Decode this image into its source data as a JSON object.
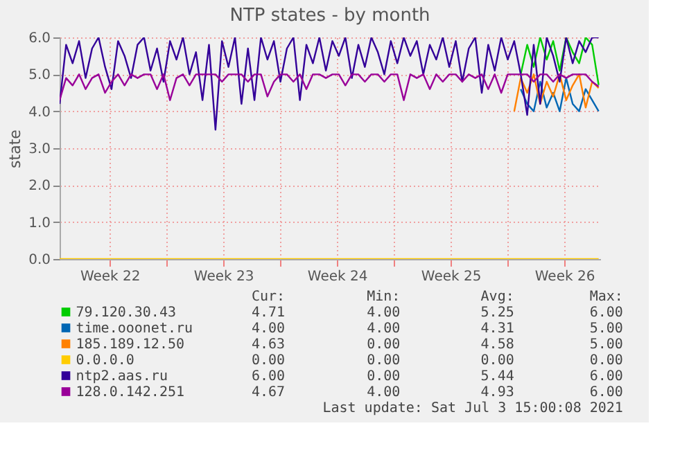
{
  "chart_data": {
    "type": "line",
    "title": "NTP states - by month",
    "ylabel": "state",
    "x": [
      "2021-05-31T10:00",
      "2021-05-31T19:36",
      "2021-06-01T05:12",
      "2021-06-01T14:48",
      "2021-06-02T00:24",
      "2021-06-02T10:00",
      "2021-06-02T19:36",
      "2021-06-03T05:12",
      "2021-06-03T14:48",
      "2021-06-04T00:24",
      "2021-06-04T10:00",
      "2021-06-04T19:36",
      "2021-06-05T05:12",
      "2021-06-05T14:48",
      "2021-06-06T00:24",
      "2021-06-06T10:00",
      "2021-06-06T19:36",
      "2021-06-07T05:12",
      "2021-06-07T14:48",
      "2021-06-08T00:24",
      "2021-06-08T10:00",
      "2021-06-08T19:36",
      "2021-06-09T05:12",
      "2021-06-09T14:48",
      "2021-06-10T00:24",
      "2021-06-10T10:00",
      "2021-06-10T19:36",
      "2021-06-11T05:12",
      "2021-06-11T14:48",
      "2021-06-12T00:24",
      "2021-06-12T10:00",
      "2021-06-12T19:36",
      "2021-06-13T05:12",
      "2021-06-13T14:48",
      "2021-06-14T00:24",
      "2021-06-14T10:00",
      "2021-06-14T19:36",
      "2021-06-15T05:12",
      "2021-06-15T14:48",
      "2021-06-16T00:24",
      "2021-06-16T10:00",
      "2021-06-16T19:36",
      "2021-06-17T05:12",
      "2021-06-17T14:48",
      "2021-06-18T00:24",
      "2021-06-18T10:00",
      "2021-06-18T19:36",
      "2021-06-19T05:12",
      "2021-06-19T14:48",
      "2021-06-20T00:24",
      "2021-06-20T10:00",
      "2021-06-20T19:36",
      "2021-06-21T05:12",
      "2021-06-21T14:48",
      "2021-06-22T00:24",
      "2021-06-22T10:00",
      "2021-06-22T19:36",
      "2021-06-23T05:12",
      "2021-06-23T14:48",
      "2021-06-24T00:24",
      "2021-06-24T10:00",
      "2021-06-24T19:36",
      "2021-06-25T05:12",
      "2021-06-25T14:48",
      "2021-06-26T00:24",
      "2021-06-26T10:00",
      "2021-06-26T19:36",
      "2021-06-27T05:12",
      "2021-06-27T14:48",
      "2021-06-28T00:24",
      "2021-06-28T10:00",
      "2021-06-28T19:36",
      "2021-06-29T05:12",
      "2021-06-29T14:48",
      "2021-06-30T00:24",
      "2021-06-30T10:00",
      "2021-06-30T19:36",
      "2021-07-01T05:12",
      "2021-07-01T14:48",
      "2021-07-02T00:24",
      "2021-07-02T10:00",
      "2021-07-02T19:36",
      "2021-07-03T05:12",
      "2021-07-03T14:48"
    ],
    "series": [
      {
        "name": "79.120.30.43",
        "color": "#00cc00",
        "x": [
          "2021-06-28T19:36",
          "2021-06-29T05:12",
          "2021-06-29T14:48",
          "2021-06-30T00:24",
          "2021-06-30T10:00",
          "2021-06-30T19:36",
          "2021-07-01T05:12",
          "2021-07-01T14:48",
          "2021-07-02T00:24",
          "2021-07-02T10:00",
          "2021-07-02T19:36",
          "2021-07-03T05:12",
          "2021-07-03T14:48"
        ],
        "values": [
          5.0,
          5.8,
          5.2,
          6.0,
          5.4,
          5.9,
          5.1,
          6.0,
          5.6,
          5.3,
          6.0,
          5.8,
          4.71
        ]
      },
      {
        "name": "time.ooonet.ru",
        "color": "#0066b3",
        "x": [
          "2021-06-28T19:36",
          "2021-06-29T05:12",
          "2021-06-29T14:48",
          "2021-06-30T00:24",
          "2021-06-30T10:00",
          "2021-06-30T19:36",
          "2021-07-01T05:12",
          "2021-07-01T14:48",
          "2021-07-02T00:24",
          "2021-07-02T10:00",
          "2021-07-02T19:36",
          "2021-07-03T05:12",
          "2021-07-03T14:48"
        ],
        "values": [
          4.6,
          4.2,
          4.0,
          4.8,
          4.1,
          4.5,
          4.0,
          4.9,
          4.2,
          4.0,
          4.6,
          4.3,
          4.0
        ]
      },
      {
        "name": "185.189.12.50",
        "color": "#ff8000",
        "x": [
          "2021-06-28T10:00",
          "2021-06-28T19:36",
          "2021-06-29T05:12",
          "2021-06-29T14:48",
          "2021-06-30T00:24",
          "2021-06-30T10:00",
          "2021-06-30T19:36",
          "2021-07-01T05:12",
          "2021-07-01T14:48",
          "2021-07-02T00:24",
          "2021-07-02T10:00",
          "2021-07-02T19:36",
          "2021-07-03T05:12",
          "2021-07-03T14:48"
        ],
        "values": [
          4.0,
          4.9,
          4.5,
          5.0,
          4.2,
          4.8,
          4.4,
          5.0,
          4.3,
          4.7,
          5.0,
          4.1,
          4.8,
          4.63
        ]
      },
      {
        "name": "0.0.0.0",
        "color": "#ffcc00",
        "values": [
          0,
          0,
          0,
          0,
          0,
          0,
          0,
          0,
          0,
          0,
          0,
          0,
          0,
          0,
          0,
          0,
          0,
          0,
          0,
          0,
          0,
          0,
          0,
          0,
          0,
          0,
          0,
          0,
          0,
          0,
          0,
          0,
          0,
          0,
          0,
          0,
          0,
          0,
          0,
          0,
          0,
          0,
          0,
          0,
          0,
          0,
          0,
          0,
          0,
          0,
          0,
          0,
          0,
          0,
          0,
          0,
          0,
          0,
          0,
          0,
          0,
          0,
          0,
          0,
          0,
          0,
          0,
          0,
          0,
          0,
          0,
          0,
          0,
          0,
          0,
          0,
          0,
          0,
          0,
          0,
          0,
          0,
          0,
          0
        ]
      },
      {
        "name": "ntp2.aas.ru",
        "color": "#330099",
        "values": [
          4.2,
          5.8,
          5.3,
          5.9,
          4.9,
          5.7,
          6.0,
          5.2,
          4.6,
          5.9,
          5.5,
          4.9,
          5.8,
          6.0,
          5.1,
          5.7,
          4.8,
          5.9,
          5.4,
          6.0,
          5.0,
          5.6,
          4.3,
          5.8,
          3.5,
          5.9,
          5.2,
          6.0,
          4.2,
          5.7,
          4.3,
          6.0,
          5.4,
          5.9,
          4.8,
          5.7,
          6.0,
          4.3,
          5.8,
          5.3,
          6.0,
          5.1,
          5.9,
          5.5,
          6.0,
          4.9,
          5.8,
          5.2,
          6.0,
          5.6,
          5.0,
          5.9,
          5.3,
          6.0,
          5.5,
          5.9,
          5.0,
          5.8,
          5.4,
          6.0,
          5.2,
          5.9,
          4.8,
          5.7,
          6.0,
          4.5,
          5.8,
          5.1,
          6.0,
          5.4,
          5.9,
          5.0,
          3.9,
          5.8,
          4.2,
          6.0,
          5.5,
          4.8,
          6.0,
          5.3,
          5.9,
          5.6,
          6.0,
          6.0
        ]
      },
      {
        "name": "128.0.142.251",
        "color": "#990099",
        "values": [
          4.3,
          4.9,
          4.7,
          5.0,
          4.6,
          4.9,
          5.0,
          4.5,
          4.8,
          5.0,
          4.7,
          5.0,
          4.9,
          5.0,
          5.0,
          4.6,
          5.0,
          4.3,
          4.9,
          5.0,
          4.7,
          5.0,
          5.0,
          5.0,
          5.0,
          4.8,
          5.0,
          5.0,
          5.0,
          4.8,
          5.0,
          5.0,
          4.4,
          4.8,
          5.0,
          5.0,
          4.8,
          5.0,
          4.6,
          5.0,
          5.0,
          4.9,
          5.0,
          5.0,
          4.7,
          5.0,
          5.0,
          4.8,
          5.0,
          5.0,
          4.8,
          5.0,
          5.0,
          4.3,
          5.0,
          4.9,
          5.0,
          4.6,
          5.0,
          4.8,
          5.0,
          5.0,
          4.8,
          5.0,
          4.9,
          5.0,
          4.6,
          5.0,
          4.5,
          5.0,
          5.0,
          5.0,
          5.0,
          4.8,
          5.0,
          5.0,
          4.8,
          5.0,
          4.9,
          5.0,
          5.0,
          5.0,
          4.8,
          4.67
        ]
      }
    ],
    "xlim": [
      "2021-05-31T10:00",
      "2021-07-03T17:12"
    ],
    "xticks": [
      {
        "value": "2021-06-03T12:00",
        "label": "Week 22"
      },
      {
        "value": "2021-06-07",
        "label": null
      },
      {
        "value": "2021-06-10T12:00",
        "label": "Week 23"
      },
      {
        "value": "2021-06-14",
        "label": null
      },
      {
        "value": "2021-06-17T12:00",
        "label": "Week 24"
      },
      {
        "value": "2021-06-21",
        "label": null
      },
      {
        "value": "2021-06-24T12:00",
        "label": "Week 25"
      },
      {
        "value": "2021-06-28",
        "label": null
      },
      {
        "value": "2021-07-01T12:00",
        "label": "Week 26"
      }
    ],
    "ylim": [
      0,
      6
    ],
    "yticks": [
      {
        "value": 0,
        "label": "0.0"
      },
      {
        "value": 1,
        "label": "1.0"
      },
      {
        "value": 2,
        "label": "2.0"
      },
      {
        "value": 3,
        "label": "3.0"
      },
      {
        "value": 4,
        "label": "4.0"
      },
      {
        "value": 5,
        "label": "5.0"
      },
      {
        "value": 6,
        "label": "6.0"
      }
    ],
    "grid": true,
    "legend": "bottom",
    "marker": "none",
    "line_style": "solid",
    "annotations": [
      "Cur:",
      "Min:",
      "Avg:",
      "Max:",
      "4.71",
      "4.00",
      "5.25",
      "6.00",
      "4.00",
      "4.00",
      "4.31",
      "5.00",
      "4.63",
      "0.00",
      "4.58",
      "5.00",
      "0.00",
      "0.00",
      "0.00",
      "0.00",
      "6.00",
      "0.00",
      "5.44",
      "6.00",
      "4.67",
      "4.00",
      "4.93",
      "6.00",
      "Last update: Sat Jul  3 15:00:08 2021"
    ]
  }
}
